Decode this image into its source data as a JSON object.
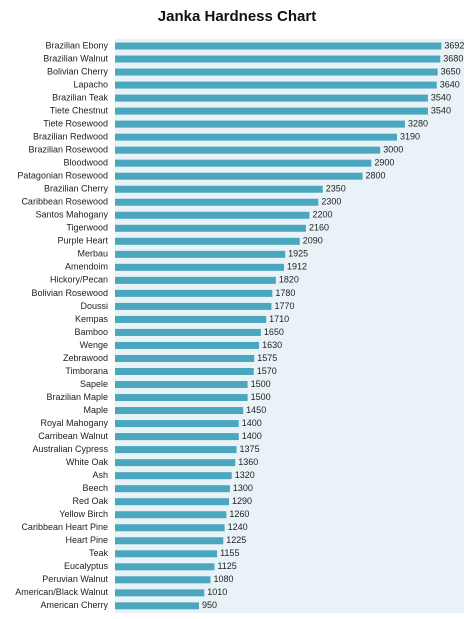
{
  "chart_data": {
    "type": "barh",
    "title": "Janka Hardness Chart",
    "color": "#4aa7bf",
    "categories": [
      "Brazilian Ebony",
      "Brazilian Walnut",
      "Bolivian Cherry",
      "Lapacho",
      "Brazilian Teak",
      "Tiete Chestnut",
      "Tiete Rosewood",
      "Brazilian Redwood",
      "Brazilian Rosewood",
      "Bloodwood",
      "Patagonian Rosewood",
      "Brazilian Cherry",
      "Caribbean Rosewood",
      "Santos Mahogany",
      "Tigerwood",
      "Purple Heart",
      "Merbau",
      "Amendoim",
      "Hickory/Pecan",
      "Bolivian Rosewood",
      "Doussi",
      "Kempas",
      "Bamboo",
      "Wenge",
      "Zebrawood",
      "Timborana",
      "Sapele",
      "Brazilian Maple",
      "Maple",
      "Royal Mahogany",
      "Carribean Walnut",
      "Australian Cypress",
      "White Oak",
      "Ash",
      "Beech",
      "Red Oak",
      "Yellow Birch",
      "Caribbean Heart Pine",
      "Heart Pine",
      "Teak",
      "Eucalyptus",
      "Peruvian Walnut",
      "American/Black Walnut",
      "American Cherry"
    ],
    "values": [
      3692,
      3680,
      3650,
      3640,
      3540,
      3540,
      3280,
      3190,
      3000,
      2900,
      2800,
      2350,
      2300,
      2200,
      2160,
      2090,
      1925,
      1912,
      1820,
      1780,
      1770,
      1710,
      1650,
      1630,
      1575,
      1570,
      1500,
      1500,
      1450,
      1400,
      1400,
      1375,
      1360,
      1320,
      1300,
      1290,
      1260,
      1240,
      1225,
      1155,
      1125,
      1080,
      1010,
      950
    ]
  }
}
